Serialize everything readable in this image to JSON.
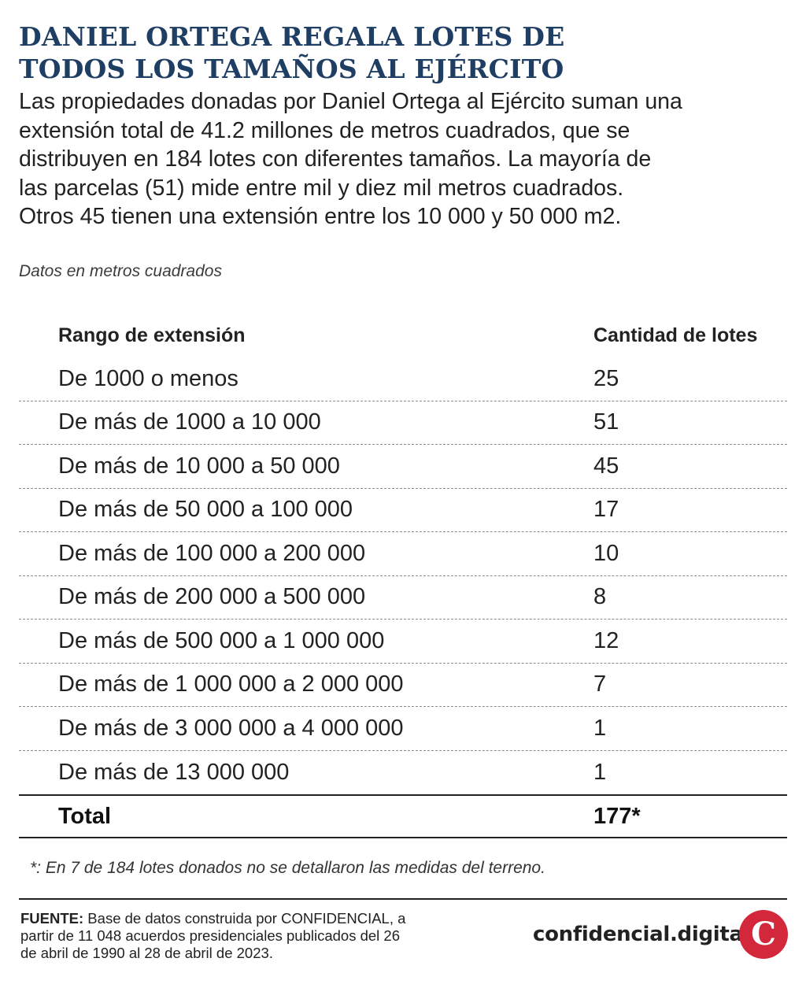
{
  "title_lines": [
    "DANIEL ORTEGA REGALA LOTES DE",
    "TODOS LOS TAMAÑOS AL EJÉRCITO"
  ],
  "intro_lines": [
    "Las propiedades donadas por Daniel Ortega al Ejército suman una",
    "extensión total de 41.2 millones de metros cuadrados, que se",
    "distribuyen en 184 lotes con diferentes tamaños. La mayoría de",
    "las parcelas (51) mide entre mil y diez mil metros cuadrados.",
    "Otros 45 tienen una extensión entre los 10 000 y 50 000 m2."
  ],
  "note": "Datos en metros cuadrados",
  "chart_data": {
    "type": "table",
    "columns": [
      "Rango de extensión",
      "Cantidad de lotes"
    ],
    "rows": [
      [
        "De 1000 o menos",
        "25"
      ],
      [
        "De más de 1000 a 10 000",
        "51"
      ],
      [
        "De más de 10 000 a 50 000",
        "45"
      ],
      [
        "De más de 50 000 a 100 000",
        "17"
      ],
      [
        "De más de 100 000 a 200 000",
        "10"
      ],
      [
        "De más de 200 000 a 500 000",
        "8"
      ],
      [
        "De más de 500 000 a 1 000 000",
        "12"
      ],
      [
        "De más de 1 000 000 a 2 000 000",
        "7"
      ],
      [
        "De más de 3 000 000 a 4 000 000",
        "1"
      ],
      [
        "De más de 13 000 000",
        "1"
      ]
    ],
    "total": [
      "Total",
      "177*"
    ]
  },
  "footnote": "*: En 7 de 184 lotes donados no se detallaron las medidas del terreno.",
  "source": {
    "label": "FUENTE:",
    "lines": [
      " Base de datos construida por CONFIDENCIAL, a",
      "partir de 11 048 acuerdos presidenciales publicados del 26",
      "de abril de 1990 al 28 de abril de 2023."
    ]
  },
  "brand": "confidencial.digital",
  "logo_letter": "C",
  "colors": {
    "title": "#1f3e63",
    "logo": "#d3283c"
  }
}
